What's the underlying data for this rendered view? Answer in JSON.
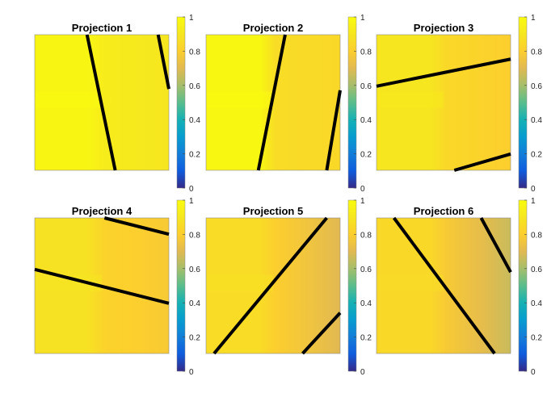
{
  "chart_data": [
    {
      "type": "heatmap",
      "title": "Projection 1",
      "colorbar": {
        "ticks": [
          0,
          0.2,
          0.4,
          0.6,
          0.8,
          1
        ],
        "range": [
          0,
          1
        ],
        "colormap": "parula"
      },
      "regions": [
        {
          "name": "left",
          "value": 0.97
        },
        {
          "name": "center",
          "value": 0.93
        },
        {
          "name": "right",
          "value": 0.9
        }
      ],
      "lines": [
        {
          "from": [
            0.39,
            1
          ],
          "to": [
            0.6,
            0
          ]
        },
        {
          "from": [
            0.92,
            1
          ],
          "to": [
            1,
            0.6
          ]
        }
      ],
      "grid": false
    },
    {
      "type": "heatmap",
      "title": "Projection 2",
      "colorbar": {
        "ticks": [
          0,
          0.2,
          0.4,
          0.6,
          0.8,
          1
        ],
        "range": [
          0,
          1
        ],
        "colormap": "parula"
      },
      "regions": [
        {
          "name": "left",
          "value": 0.98
        },
        {
          "name": "center",
          "value": 0.86
        },
        {
          "name": "right",
          "value": 0.84
        }
      ],
      "lines": [
        {
          "from": [
            0.59,
            1
          ],
          "to": [
            0.39,
            0
          ]
        },
        {
          "from": [
            1,
            0.59
          ],
          "to": [
            0.9,
            0
          ]
        }
      ],
      "grid": false
    },
    {
      "type": "heatmap",
      "title": "Projection 3",
      "colorbar": {
        "ticks": [
          0,
          0.2,
          0.4,
          0.6,
          0.8,
          1
        ],
        "range": [
          0,
          1
        ],
        "colormap": "parula"
      },
      "regions": [
        {
          "name": "left",
          "value": 0.9
        },
        {
          "name": "center",
          "value": 0.84
        },
        {
          "name": "right",
          "value": 0.8
        }
      ],
      "lines": [
        {
          "from": [
            0,
            0.62
          ],
          "to": [
            1,
            0.82
          ]
        },
        {
          "from": [
            0.58,
            0
          ],
          "to": [
            1,
            0.12
          ]
        }
      ],
      "grid": false
    },
    {
      "type": "heatmap",
      "title": "Projection 4",
      "colorbar": {
        "ticks": [
          0,
          0.2,
          0.4,
          0.6,
          0.8,
          1
        ],
        "range": [
          0,
          1
        ],
        "colormap": "parula"
      },
      "regions": [
        {
          "name": "left",
          "value": 0.88
        },
        {
          "name": "center",
          "value": 0.82
        },
        {
          "name": "right",
          "value": 0.78
        }
      ],
      "lines": [
        {
          "from": [
            0,
            0.62
          ],
          "to": [
            1,
            0.37
          ]
        },
        {
          "from": [
            0.52,
            1
          ],
          "to": [
            1,
            0.88
          ]
        }
      ],
      "grid": false
    },
    {
      "type": "heatmap",
      "title": "Projection 5",
      "colorbar": {
        "ticks": [
          0,
          0.2,
          0.4,
          0.6,
          0.8,
          1
        ],
        "range": [
          0,
          1
        ],
        "colormap": "parula"
      },
      "regions": [
        {
          "name": "left",
          "value": 0.86
        },
        {
          "name": "center",
          "value": 0.8
        },
        {
          "name": "right",
          "value": 0.7
        }
      ],
      "lines": [
        {
          "from": [
            0.06,
            0
          ],
          "to": [
            0.9,
            1
          ]
        },
        {
          "from": [
            0.72,
            0
          ],
          "to": [
            1,
            0.3
          ]
        }
      ],
      "grid": false
    },
    {
      "type": "heatmap",
      "title": "Projection 6",
      "colorbar": {
        "ticks": [
          0,
          0.2,
          0.4,
          0.6,
          0.8,
          1
        ],
        "range": [
          0,
          1
        ],
        "colormap": "parula"
      },
      "regions": [
        {
          "name": "left",
          "value": 0.84
        },
        {
          "name": "center",
          "value": 0.78
        },
        {
          "name": "right",
          "value": 0.66
        }
      ],
      "lines": [
        {
          "from": [
            0.13,
            1
          ],
          "to": [
            0.88,
            0
          ]
        },
        {
          "from": [
            0.78,
            1
          ],
          "to": [
            1,
            0.6
          ]
        }
      ],
      "grid": false
    }
  ]
}
